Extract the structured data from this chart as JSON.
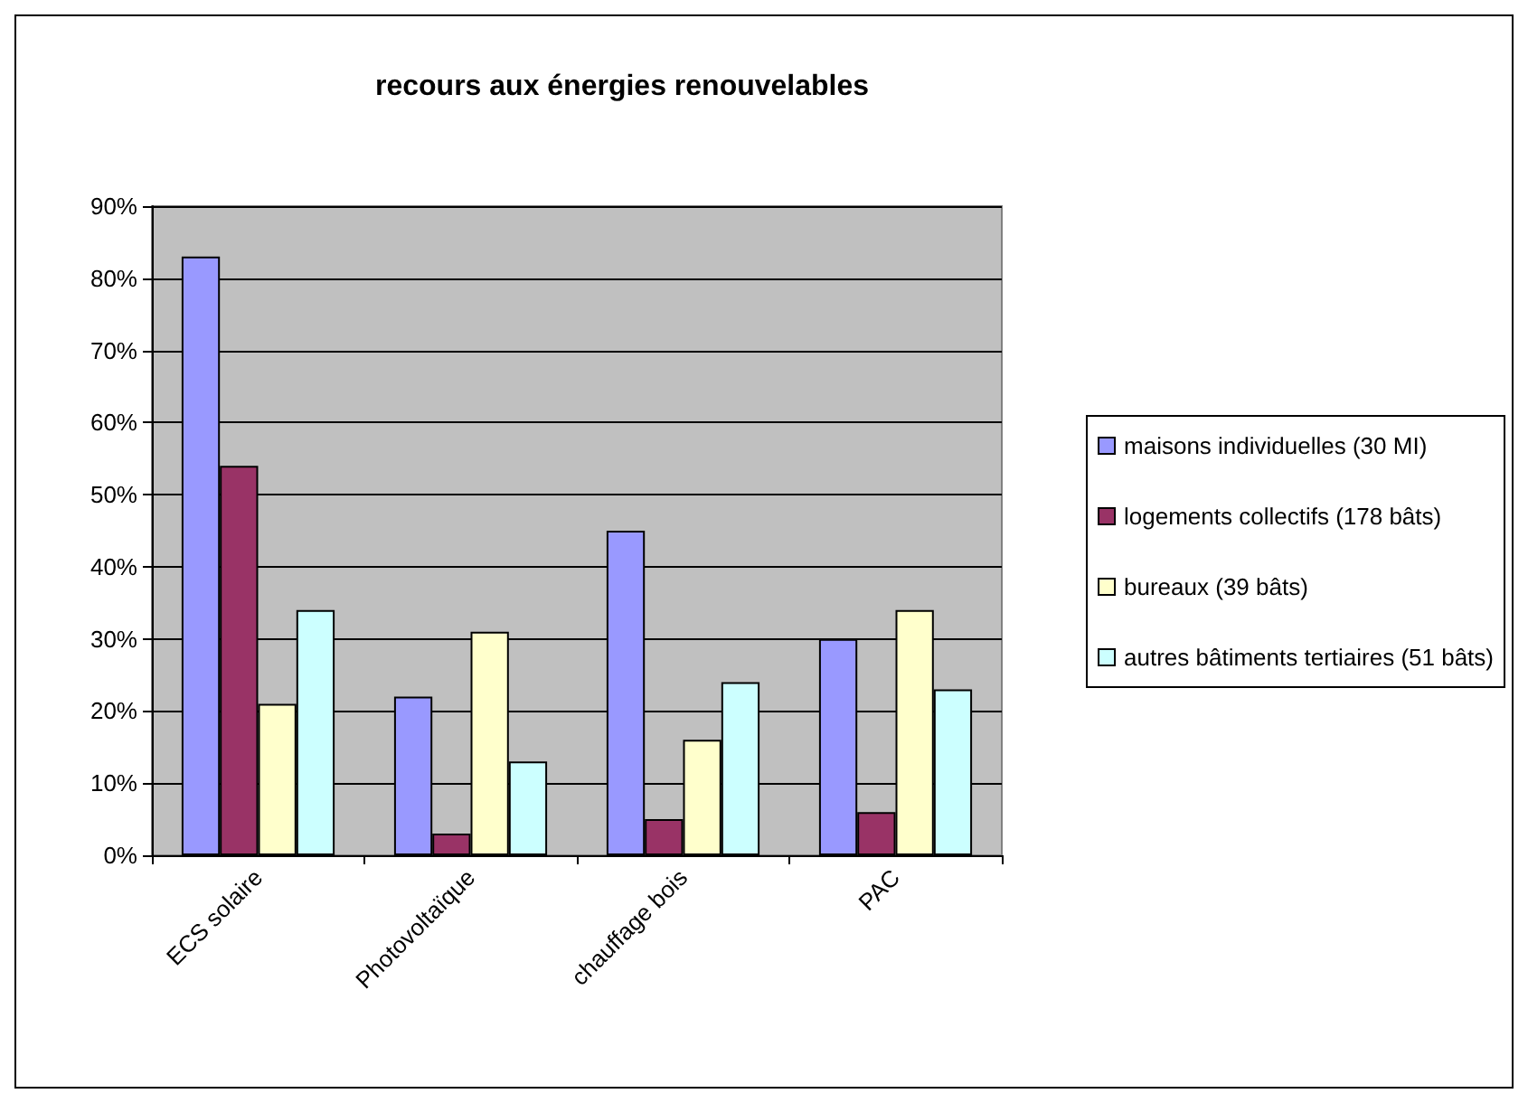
{
  "chart_data": {
    "type": "bar",
    "title": "recours aux énergies renouvelables",
    "categories": [
      "ECS solaire",
      "Photovoltaïque",
      "chauffage bois",
      "PAC"
    ],
    "series": [
      {
        "name": "maisons individuelles (30 MI)",
        "color": "#9999ff",
        "values": [
          83,
          22,
          45,
          30
        ]
      },
      {
        "name": "logements collectifs (178 bâts)",
        "color": "#993366",
        "values": [
          54,
          3,
          5,
          6
        ]
      },
      {
        "name": "bureaux (39 bâts)",
        "color": "#ffffcc",
        "values": [
          21,
          31,
          16,
          34
        ]
      },
      {
        "name": "autres bâtiments tertiaires (51 bâts)",
        "color": "#ccffff",
        "values": [
          34,
          13,
          24,
          23
        ]
      }
    ],
    "ylim": [
      0,
      90
    ],
    "yticks": [
      {
        "value": 0,
        "label": "0%"
      },
      {
        "value": 10,
        "label": "10%"
      },
      {
        "value": 20,
        "label": "20%"
      },
      {
        "value": 30,
        "label": "30%"
      },
      {
        "value": 40,
        "label": "40%"
      },
      {
        "value": 50,
        "label": "50%"
      },
      {
        "value": 60,
        "label": "60%"
      },
      {
        "value": 70,
        "label": "70%"
      },
      {
        "value": 80,
        "label": "80%"
      },
      {
        "value": 90,
        "label": "90%"
      }
    ],
    "grid": "y",
    "legend": "right"
  }
}
